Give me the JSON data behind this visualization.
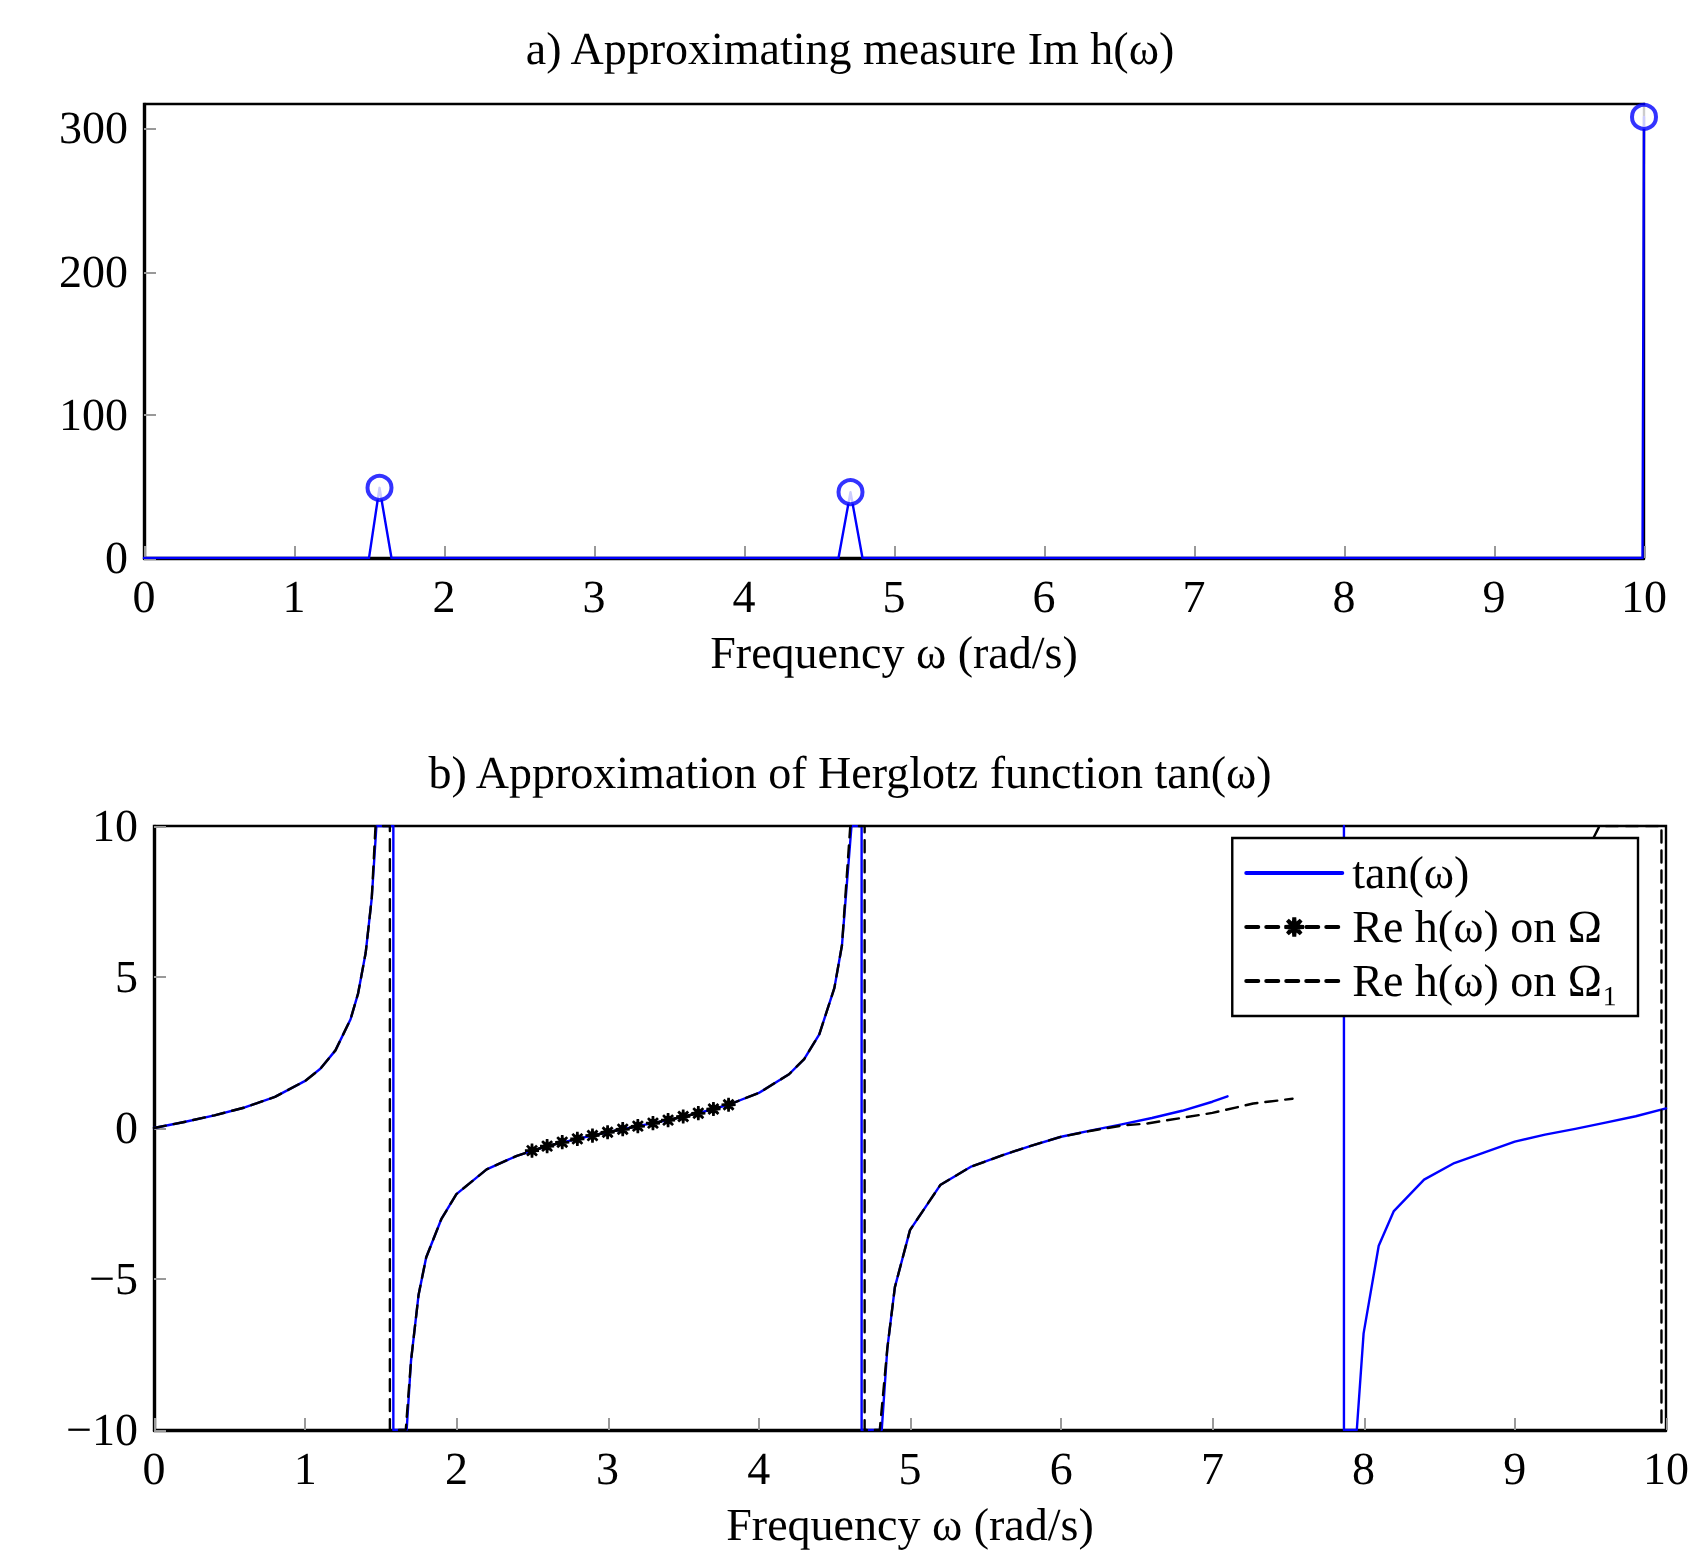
{
  "chart_data": [
    {
      "type": "line",
      "title": "a) Approximating measure Im h(ω)",
      "xlabel": "Frequency ω (rad/s)",
      "xlim": [
        0,
        10
      ],
      "xticks": [
        0,
        1,
        2,
        3,
        4,
        5,
        6,
        7,
        8,
        9,
        10
      ],
      "ylim": [
        0,
        317
      ],
      "yticks": [
        0,
        100,
        200,
        300
      ],
      "grid": false,
      "legend": false,
      "series": [
        {
          "color": "#0000ff",
          "marker": "none",
          "line_style": "solid",
          "x": [
            0,
            1.5,
            1.57,
            1.65,
            4.63,
            4.71,
            4.79,
            9.99,
            10
          ],
          "values": [
            0,
            0,
            49,
            0,
            0,
            46,
            0,
            0,
            308
          ]
        },
        {
          "type": "scatter",
          "color": "#0000ff",
          "marker": "circle",
          "x": [
            1.57,
            4.71,
            10
          ],
          "values": [
            49,
            46,
            308
          ]
        }
      ]
    },
    {
      "type": "line",
      "title": "b) Approximation of Herglotz function tan(ω)",
      "xlabel": "Frequency ω (rad/s)",
      "xlim": [
        0,
        10
      ],
      "xticks": [
        0,
        1,
        2,
        3,
        4,
        5,
        6,
        7,
        8,
        9,
        10
      ],
      "ylim": [
        -10,
        10
      ],
      "yticks": [
        -10,
        -5,
        0,
        5,
        10
      ],
      "grid": false,
      "legend": "top right",
      "series": [
        {
          "name": "tan(ω)",
          "color": "#0000ff",
          "marker": "none",
          "line_style": "solid",
          "x": [
            0,
            0.2,
            0.4,
            0.6,
            0.8,
            1.0,
            1.1,
            1.2,
            1.3,
            1.35,
            1.4,
            1.44,
            1.471,
            1.583,
            1.583,
            1.671,
            1.7,
            1.75,
            1.8,
            1.9,
            2.0,
            2.2,
            2.4,
            2.6,
            2.8,
            3.0,
            3.2,
            3.4,
            3.6,
            3.8,
            4.0,
            4.2,
            4.3,
            4.4,
            4.5,
            4.55,
            4.613,
            4.68,
            4.68,
            4.813,
            4.85,
            4.9,
            5.0,
            5.2,
            5.4,
            5.6,
            5.8,
            6.0,
            6.2,
            6.4,
            6.6,
            6.8,
            7.0,
            7.1,
            7.2,
            7.87,
            7.87,
            7.955,
            8.0,
            8.1,
            8.2,
            8.4,
            8.6,
            8.8,
            9.0,
            9.2,
            9.4,
            9.6,
            9.8,
            10
          ],
          "values": [
            0,
            0.2,
            0.42,
            0.68,
            1.03,
            1.56,
            1.96,
            2.57,
            3.6,
            4.46,
            5.8,
            7.6,
            10,
            10,
            -10,
            -10,
            -7.7,
            -5.52,
            -4.29,
            -3.02,
            -2.19,
            -1.37,
            -0.92,
            -0.6,
            -0.36,
            -0.14,
            0.06,
            0.26,
            0.49,
            0.77,
            1.16,
            1.78,
            2.28,
            3.1,
            4.64,
            6.05,
            10,
            10,
            -10,
            -10,
            -7.3,
            -5.27,
            -3.38,
            -1.89,
            -1.29,
            -0.92,
            -0.59,
            -0.29,
            -0.08,
            0.12,
            0.33,
            0.57,
            0.87,
            1.05,
            null,
            10,
            -10,
            -10,
            -6.8,
            -3.9,
            -2.75,
            -1.71,
            -1.16,
            -0.81,
            -0.45,
            -0.22,
            -0.03,
            0.18,
            0.39,
            0.65
          ]
        },
        {
          "name": "Re h(ω) on Ω",
          "color": "#000000",
          "marker": "star",
          "line_style": "dashed",
          "x": [
            2.5,
            2.6,
            2.7,
            2.8,
            2.9,
            3.0,
            3.1,
            3.2,
            3.3,
            3.4,
            3.5,
            3.6,
            3.7,
            3.8
          ],
          "values": [
            -0.75,
            -0.6,
            -0.47,
            -0.36,
            -0.25,
            -0.14,
            -0.04,
            0.06,
            0.16,
            0.26,
            0.38,
            0.49,
            0.63,
            0.77
          ]
        },
        {
          "name": "Re h(ω) on Ω₁",
          "color": "#000000",
          "marker": "none",
          "line_style": "dashed",
          "x": [
            0,
            0.2,
            0.4,
            0.6,
            0.8,
            1.0,
            1.1,
            1.2,
            1.3,
            1.35,
            1.4,
            1.44,
            1.465,
            1.56,
            1.56,
            1.665,
            1.7,
            1.75,
            1.8,
            1.9,
            2.0,
            2.2,
            2.4,
            2.6,
            2.8,
            3.0,
            3.2,
            3.4,
            3.6,
            3.8,
            4.0,
            4.2,
            4.3,
            4.4,
            4.5,
            4.55,
            4.605,
            4.7,
            4.7,
            4.8,
            4.85,
            4.9,
            5.0,
            5.2,
            5.4,
            5.6,
            5.8,
            6.0,
            6.2,
            6.4,
            6.57,
            7.0,
            7.27,
            7.53,
            7.6,
            9.52,
            9.56,
            9.97,
            9.97
          ],
          "values": [
            0,
            0.2,
            0.42,
            0.68,
            1.03,
            1.56,
            1.96,
            2.57,
            3.6,
            4.46,
            5.8,
            7.6,
            10,
            10,
            -10,
            -10,
            -7.7,
            -5.52,
            -4.29,
            -3.02,
            -2.19,
            -1.37,
            -0.92,
            -0.6,
            -0.36,
            -0.14,
            0.06,
            0.26,
            0.49,
            0.77,
            1.16,
            1.78,
            2.28,
            3.1,
            4.64,
            6.05,
            10,
            10,
            -10,
            -10,
            -7.3,
            -5.27,
            -3.38,
            -1.89,
            -1.29,
            -0.92,
            -0.59,
            -0.29,
            -0.09,
            0.08,
            0.15,
            0.5,
            0.81,
            0.97,
            null,
            9.6,
            10,
            10,
            -10
          ]
        }
      ]
    }
  ]
}
